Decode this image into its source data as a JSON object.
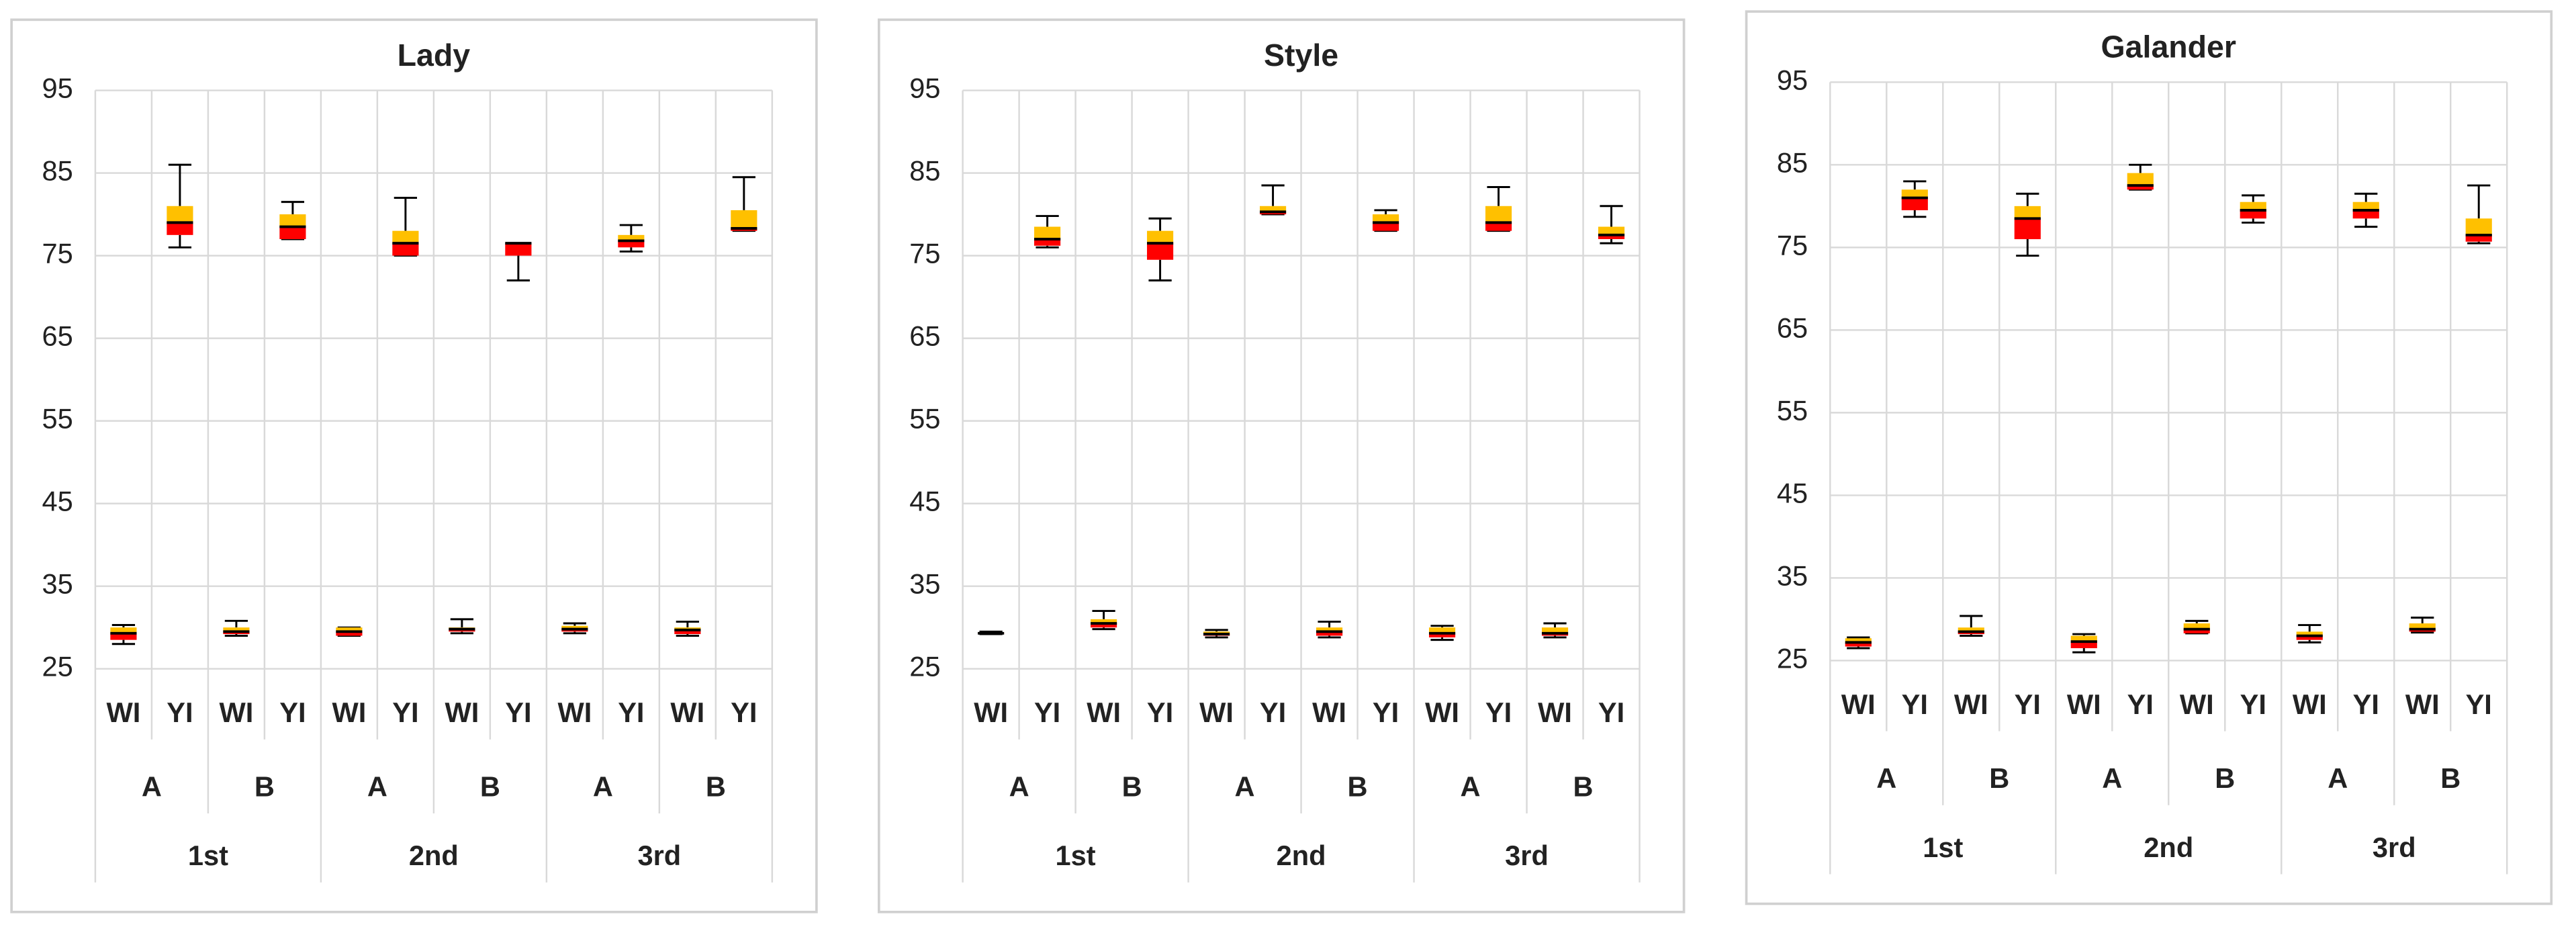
{
  "chart_data": [
    {
      "type": "box",
      "title": "Lady",
      "categories": [
        "WI",
        "YI",
        "WI",
        "YI",
        "WI",
        "YI",
        "WI",
        "YI",
        "WI",
        "YI",
        "WI",
        "YI"
      ],
      "groups": [
        "A",
        "B",
        "A",
        "B",
        "A",
        "B"
      ],
      "periods": [
        "1st",
        "2nd",
        "3rd"
      ],
      "ylim": [
        25,
        95
      ],
      "yticks": [
        25,
        35,
        45,
        55,
        65,
        75,
        85,
        95
      ],
      "grid": true,
      "colors": {
        "lower": "#ff0000",
        "upper": "#ffc000"
      },
      "min": [
        28,
        76,
        29,
        77,
        29,
        75,
        29.3,
        72,
        29.3,
        75.5,
        29,
        78
      ],
      "q1": [
        28.5,
        77.5,
        29.2,
        77,
        29,
        75,
        29.5,
        75,
        29.5,
        76,
        29.2,
        78
      ],
      "median": [
        29.3,
        79,
        29.5,
        78.5,
        29.5,
        76.5,
        29.8,
        76.5,
        29.8,
        76.8,
        29.7,
        78.3
      ],
      "q3": [
        30,
        81,
        30,
        80,
        30,
        78,
        30,
        76.5,
        30.2,
        77.5,
        30,
        80.5
      ],
      "max": [
        30.3,
        86,
        30.8,
        81.5,
        30,
        82,
        31,
        76.5,
        30.5,
        78.7,
        30.7,
        84.5
      ]
    },
    {
      "type": "box",
      "title": "Style",
      "categories": [
        "WI",
        "YI",
        "WI",
        "YI",
        "WI",
        "YI",
        "WI",
        "YI",
        "WI",
        "YI",
        "WI",
        "YI"
      ],
      "groups": [
        "A",
        "B",
        "A",
        "B",
        "A",
        "B"
      ],
      "periods": [
        "1st",
        "2nd",
        "3rd"
      ],
      "ylim": [
        25,
        95
      ],
      "yticks": [
        25,
        35,
        45,
        55,
        65,
        75,
        85,
        95
      ],
      "grid": true,
      "colors": {
        "lower": "#ff0000",
        "upper": "#ffc000"
      },
      "min": [
        29.2,
        76,
        29.8,
        72,
        28.8,
        80,
        28.8,
        78,
        28.5,
        78,
        28.8,
        76.5
      ],
      "q1": [
        29.2,
        76.2,
        30,
        74.5,
        29,
        80,
        29,
        78,
        28.8,
        78,
        29,
        77
      ],
      "median": [
        29.3,
        77,
        30.5,
        76.5,
        29.2,
        80.3,
        29.5,
        79,
        29.3,
        79,
        29.3,
        77.5
      ],
      "q3": [
        29.4,
        78.5,
        31,
        78,
        29.5,
        81,
        30,
        80,
        30,
        81,
        30,
        78.5
      ],
      "max": [
        29.5,
        79.8,
        32,
        79.5,
        29.7,
        83.5,
        30.7,
        80.5,
        30.2,
        83.3,
        30.5,
        81
      ]
    },
    {
      "type": "box",
      "title": "Galander",
      "categories": [
        "WI",
        "YI",
        "WI",
        "YI",
        "WI",
        "YI",
        "WI",
        "YI",
        "WI",
        "YI",
        "WI",
        "YI"
      ],
      "groups": [
        "A",
        "B",
        "A",
        "B",
        "A",
        "B"
      ],
      "periods": [
        "1st",
        "2nd",
        "3rd"
      ],
      "ylim": [
        25,
        95
      ],
      "yticks": [
        25,
        35,
        45,
        55,
        65,
        75,
        85,
        95
      ],
      "grid": true,
      "colors": {
        "lower": "#ff0000",
        "upper": "#ffc000"
      },
      "min": [
        26.5,
        78.7,
        28,
        74,
        26,
        82,
        28.3,
        78,
        27.2,
        77.5,
        28.4,
        75.5
      ],
      "q1": [
        26.7,
        79.5,
        28.2,
        76,
        26.5,
        82,
        28.3,
        78.5,
        27.5,
        78.5,
        28.5,
        75.7
      ],
      "median": [
        27.2,
        81,
        28.5,
        78.5,
        27.3,
        82.5,
        28.8,
        79.5,
        28,
        79.5,
        28.8,
        76.5
      ],
      "q3": [
        27.7,
        82,
        29,
        80,
        28,
        84,
        29.5,
        80.5,
        28.5,
        80.5,
        29.5,
        78.5
      ],
      "max": [
        27.8,
        83,
        30.4,
        81.5,
        28.2,
        85,
        29.8,
        81.3,
        29.3,
        81.5,
        30.2,
        82.5
      ]
    }
  ]
}
